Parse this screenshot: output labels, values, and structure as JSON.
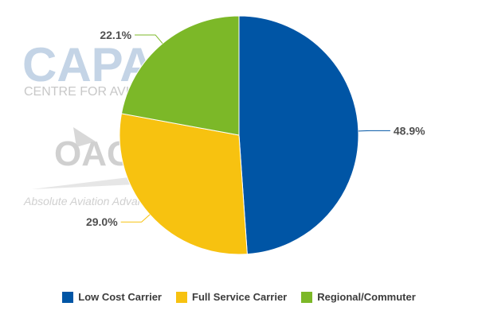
{
  "watermarks": {
    "capa_logo": "CAPA",
    "capa_tagline": "CENTRE FOR AVIATION",
    "oag_logo": "OAG",
    "oag_tagline": "Absolute Aviation Advantage"
  },
  "chart_data": {
    "type": "pie",
    "title": "",
    "slices": [
      {
        "label": "Low Cost Carrier",
        "value": 48.9,
        "display": "48.9%",
        "color": "#0055a5"
      },
      {
        "label": "Full Service Carrier",
        "value": 29.0,
        "display": "29.0%",
        "color": "#f7c210"
      },
      {
        "label": "Regional/Commuter",
        "value": 22.1,
        "display": "22.1%",
        "color": "#7cb828"
      }
    ],
    "start": "12 o'clock",
    "direction": "clockwise",
    "legend_position": "bottom"
  }
}
